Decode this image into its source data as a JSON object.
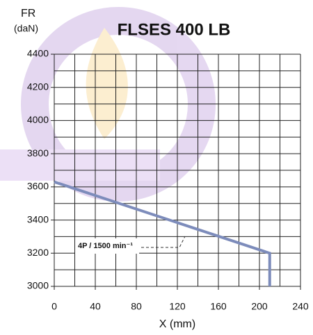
{
  "chart_data": {
    "type": "line",
    "title": "FLSES 400 LB",
    "y_label": "FR",
    "y_unit": "(daN)",
    "x_label": "X (mm)",
    "x": [
      0,
      210,
      210
    ],
    "series": [
      {
        "name": "4P / 1500 min⁻¹",
        "color": "#7d8cbb",
        "values": [
          3630,
          3200,
          3000
        ]
      }
    ],
    "xlim": [
      0,
      240
    ],
    "xticks": [
      0,
      40,
      80,
      120,
      160,
      200,
      240
    ],
    "ylim": [
      3000,
      4400
    ],
    "yticks": [
      3000,
      3200,
      3400,
      3600,
      3800,
      4000,
      4200,
      4400
    ],
    "grid": true,
    "xgrid_step": 20,
    "ygrid_step": 100
  }
}
